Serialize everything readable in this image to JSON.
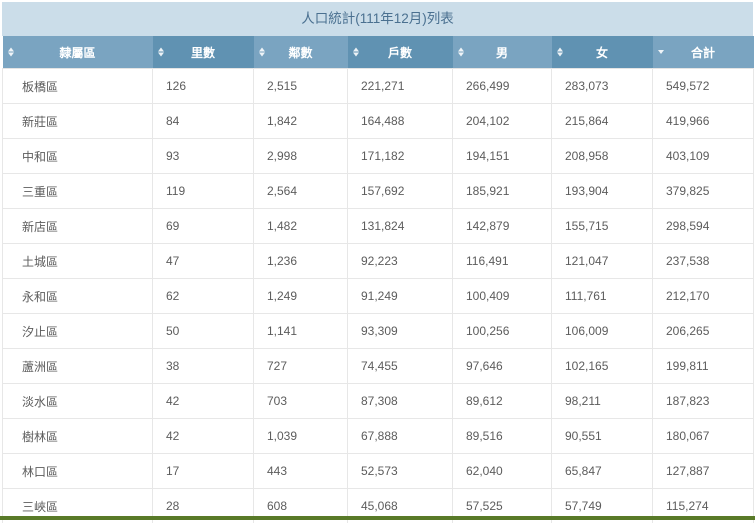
{
  "title": "人口統計(111年12月)列表",
  "table": {
    "columns": [
      {
        "label": "隸屬區",
        "sort": "none"
      },
      {
        "label": "里數",
        "sort": "none"
      },
      {
        "label": "鄰數",
        "sort": "none"
      },
      {
        "label": "戶數",
        "sort": "none"
      },
      {
        "label": "男",
        "sort": "none"
      },
      {
        "label": "女",
        "sort": "none"
      },
      {
        "label": "合計",
        "sort": "desc"
      }
    ],
    "rows": [
      [
        "板橋區",
        "126",
        "2,515",
        "221,271",
        "266,499",
        "283,073",
        "549,572"
      ],
      [
        "新莊區",
        "84",
        "1,842",
        "164,488",
        "204,102",
        "215,864",
        "419,966"
      ],
      [
        "中和區",
        "93",
        "2,998",
        "171,182",
        "194,151",
        "208,958",
        "403,109"
      ],
      [
        "三重區",
        "119",
        "2,564",
        "157,692",
        "185,921",
        "193,904",
        "379,825"
      ],
      [
        "新店區",
        "69",
        "1,482",
        "131,824",
        "142,879",
        "155,715",
        "298,594"
      ],
      [
        "土城區",
        "47",
        "1,236",
        "92,223",
        "116,491",
        "121,047",
        "237,538"
      ],
      [
        "永和區",
        "62",
        "1,249",
        "91,249",
        "100,409",
        "111,761",
        "212,170"
      ],
      [
        "汐止區",
        "50",
        "1,141",
        "93,309",
        "100,256",
        "106,009",
        "206,265"
      ],
      [
        "蘆洲區",
        "38",
        "727",
        "74,455",
        "97,646",
        "102,165",
        "199,811"
      ],
      [
        "淡水區",
        "42",
        "703",
        "87,308",
        "89,612",
        "98,211",
        "187,823"
      ],
      [
        "樹林區",
        "42",
        "1,039",
        "67,888",
        "89,516",
        "90,551",
        "180,067"
      ],
      [
        "林口區",
        "17",
        "443",
        "52,573",
        "62,040",
        "65,847",
        "127,887"
      ],
      [
        "三峽區",
        "28",
        "608",
        "45,068",
        "57,525",
        "57,749",
        "115,274"
      ]
    ]
  },
  "colors": {
    "title_bar_bg": "#cbdde9",
    "header_light": "#7aa4c1",
    "header_dark": "#6092b2",
    "accent_green": "#597a28"
  }
}
